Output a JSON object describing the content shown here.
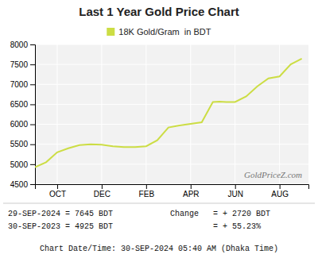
{
  "chart_data": {
    "type": "line",
    "title": "Last 1 Year Gold Price Chart",
    "x": [
      0,
      0.5,
      1,
      1.5,
      2,
      2.5,
      3,
      3.5,
      4,
      4.5,
      5,
      5.5,
      6,
      6.5,
      7,
      7.5,
      8,
      8.3,
      8.6,
      9,
      9.5,
      10,
      10.5,
      11,
      11.5,
      12
    ],
    "series": [
      {
        "name": "18K Gold/Gram  in BDT",
        "color": "#ccdd44",
        "values": [
          4925,
          5050,
          5300,
          5400,
          5480,
          5500,
          5490,
          5450,
          5430,
          5430,
          5450,
          5600,
          5920,
          5970,
          6010,
          6050,
          6560,
          6570,
          6560,
          6560,
          6700,
          6950,
          7150,
          7200,
          7500,
          7645
        ]
      }
    ],
    "xlim": [
      0,
      12.3
    ],
    "xticks": [
      {
        "value": 1,
        "label": "OCT"
      },
      {
        "value": 3,
        "label": "DEC"
      },
      {
        "value": 5,
        "label": "FEB"
      },
      {
        "value": 7,
        "label": "APR"
      },
      {
        "value": 9,
        "label": "JUN"
      },
      {
        "value": 11,
        "label": "AUG"
      }
    ],
    "ylim": [
      4500,
      8000
    ],
    "yticks": [
      4500,
      5000,
      5500,
      6000,
      6500,
      7000,
      7500,
      8000
    ],
    "grid": true,
    "legend": "top",
    "annotations": [
      "GoldPriceZ.com",
      "29-SEP-2024 = 7645 BDT",
      "30-SEP-2023 = 4925 BDT",
      "Change   = + 2720 BDT",
      "         = + 55.23%",
      "Chart Date/Time: 30-SEP-2024 05:40 AM (Dhaka Time)"
    ]
  }
}
